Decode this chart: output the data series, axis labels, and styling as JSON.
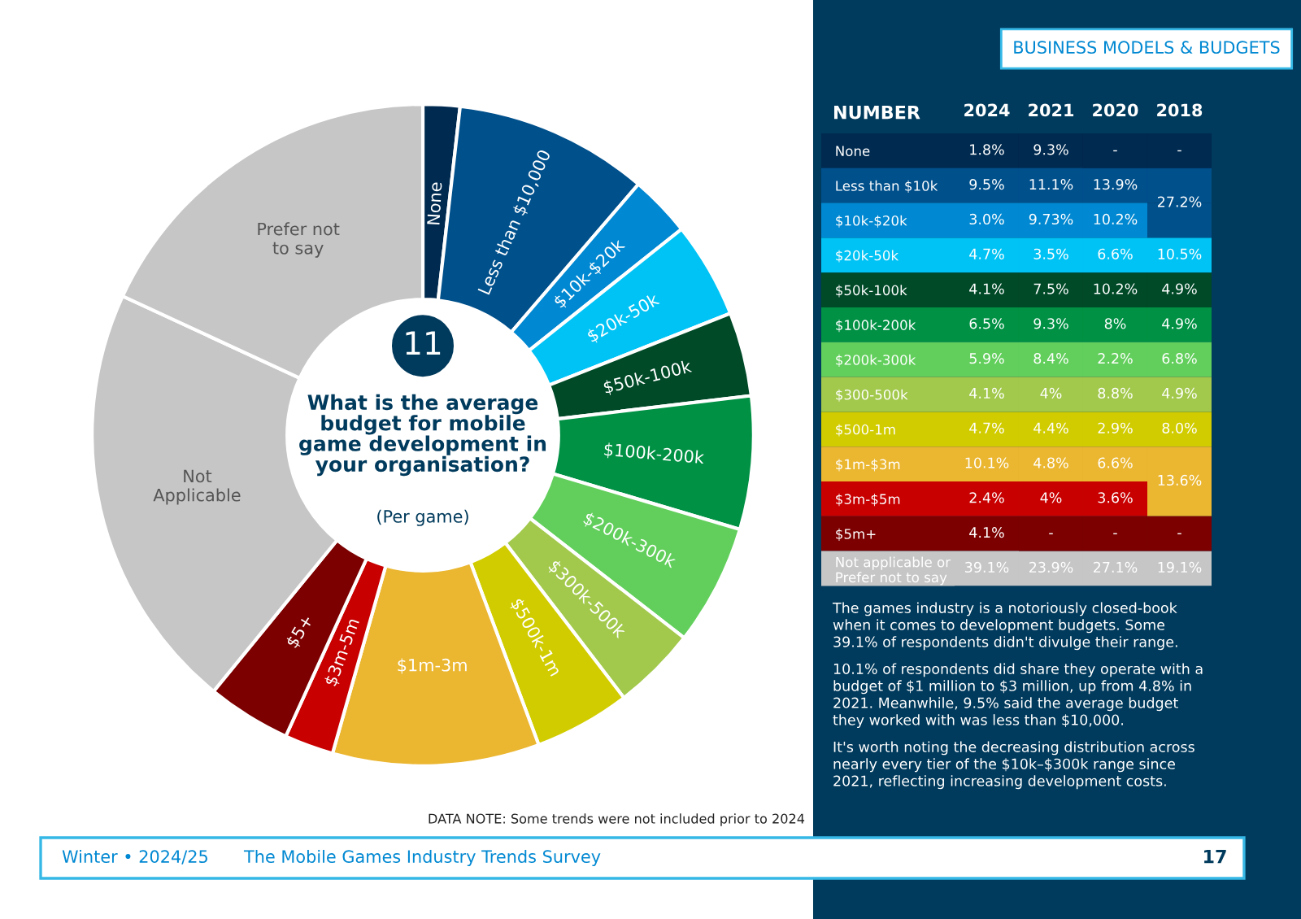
{
  "chart_data": [
    {
      "type": "donut",
      "title": "What is the average\nbudget for mobile\ngame development in\nyour organisation?",
      "subtitle": "(Per game)",
      "categories": [
        "None",
        "Less than $10,000",
        "$10k-$20k",
        "$20k-50k",
        "$50k-100k",
        "$100k-200k",
        "$200k-300k",
        "$300k-500k",
        "$500k-1m",
        "$1m-3m",
        "$3m-5m",
        "$5+",
        "Not\nApplicable",
        "Prefer not\nto say"
      ],
      "values": [
        1.8,
        9.5,
        3.0,
        4.7,
        4.1,
        6.5,
        5.9,
        4.1,
        4.7,
        10.1,
        2.4,
        4.1,
        21.0,
        18.1
      ],
      "colors": [
        "#002a50",
        "#00508c",
        "#0088d2",
        "#00c3f5",
        "#004a28",
        "#009144",
        "#62cf5c",
        "#a2c94c",
        "#d1cc00",
        "#ebb630",
        "#c80000",
        "#7c0000",
        "#c6c6c6",
        "#c6c6c6"
      ],
      "annotations": [
        "11",
        "DATA NOTE: Some trends were not included prior to 2024",
        "Winter • 2024/25",
        "The Mobile Games Industry Trends Survey",
        "17"
      ]
    },
    {
      "type": "heatmap",
      "title": "BUSINESS MODELS & BUDGETS",
      "ylabel": "NUMBER",
      "categories": [
        "2024",
        "2021",
        "2020",
        "2018"
      ],
      "y_categories": [
        "None",
        "Less than $10k",
        "$10k-$20k",
        "$20k-50k",
        "$50k-100k",
        "$100k-200k",
        "$200k-300k",
        "$300-500k",
        "$500-1m",
        "$1m-$3m",
        "$3m-$5m",
        "$5m+",
        "Not applicable or\nPrefer not to say"
      ],
      "colors": [
        "#002a50",
        "#00508c",
        "#0088d2",
        "#00c3f5",
        "#004a28",
        "#009144",
        "#62cf5c",
        "#a2c94c",
        "#d1cc00",
        "#ebb630",
        "#c80000",
        "#7c0000",
        "#c6c6c6"
      ],
      "cells": [
        [
          1.8,
          9.3,
          null,
          null
        ],
        [
          9.5,
          11.1,
          13.9,
          27.2
        ],
        [
          3.0,
          9.73,
          10.2,
          null
        ],
        [
          4.7,
          3.5,
          6.6,
          10.5
        ],
        [
          4.1,
          7.5,
          10.2,
          4.9
        ],
        [
          6.5,
          9.3,
          8,
          4.9
        ],
        [
          5.9,
          8.4,
          2.2,
          6.8
        ],
        [
          4.1,
          4,
          8.8,
          4.9
        ],
        [
          4.7,
          4.4,
          2.9,
          8.0
        ],
        [
          10.1,
          4.8,
          6.6,
          13.6
        ],
        [
          2.4,
          4,
          3.6,
          null
        ],
        [
          4.1,
          null,
          null,
          null
        ],
        [
          39.1,
          23.9,
          27.1,
          19.1
        ]
      ],
      "cell_labels": [
        [
          "1.8%",
          "9.3%",
          "-",
          "-"
        ],
        [
          "9.5%",
          "11.1%",
          "13.9%",
          "27.2%"
        ],
        [
          "3.0%",
          "9.73%",
          "10.2%",
          null
        ],
        [
          "4.7%",
          "3.5%",
          "6.6%",
          "10.5%"
        ],
        [
          "4.1%",
          "7.5%",
          "10.2%",
          "4.9%"
        ],
        [
          "6.5%",
          "9.3%",
          "8%",
          "4.9%"
        ],
        [
          "5.9%",
          "8.4%",
          "2.2%",
          "6.8%"
        ],
        [
          "4.1%",
          "4%",
          "8.8%",
          "4.9%"
        ],
        [
          "4.7%",
          "4.4%",
          "2.9%",
          "8.0%"
        ],
        [
          "10.1%",
          "4.8%",
          "6.6%",
          "13.6%"
        ],
        [
          "2.4%",
          "4%",
          "3.6%",
          null
        ],
        [
          "4.1%",
          "-",
          "-",
          "-"
        ],
        [
          "39.1%",
          "23.9%",
          "27.1%",
          "19.1%"
        ]
      ],
      "annotations": [
        "The games industry is a notoriously closed-book\nwhen it comes to development budgets. Some\n39.1% of respondents didn't divulge their range.",
        "10.1% of respondents did share they operate with a\nbudget of $1 million to $3 million, up from 4.8% in\n2021. Meanwhile, 9.5% said the average budget\nthey worked with was less than $10,000.",
        "It's worth noting the decreasing distribution across\nnearly every tier of the $10k–$300k range since\n2021, reflecting increasing development costs."
      ]
    }
  ]
}
